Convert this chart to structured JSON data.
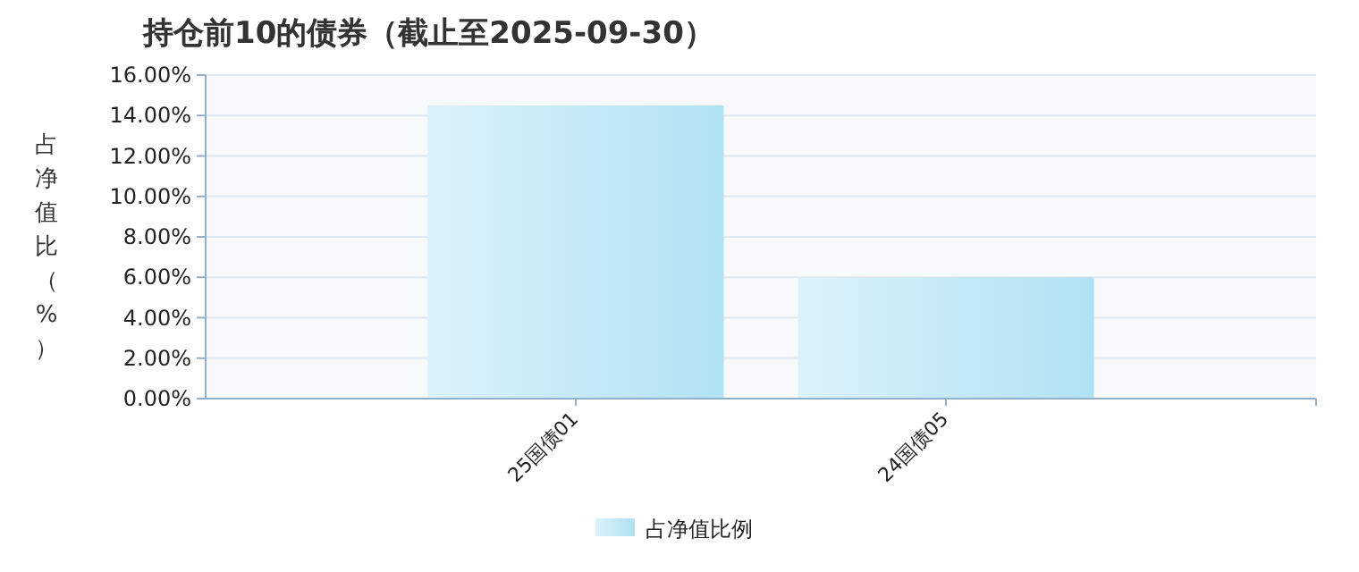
{
  "chart_data": {
    "type": "bar",
    "title": "持仓前10的债券（截止至2025-09-30）",
    "ylabel": "占净值比（%）",
    "categories": [
      "25国债01",
      "24国债05"
    ],
    "series": [
      {
        "name": "占净值比例",
        "color": "#b0e2f3",
        "values": [
          14.5,
          6.0
        ]
      }
    ],
    "ylim": [
      0,
      16
    ],
    "yticks": [
      {
        "value": 0,
        "label": "0.00%"
      },
      {
        "value": 2,
        "label": "2.00%"
      },
      {
        "value": 4,
        "label": "4.00%"
      },
      {
        "value": 6,
        "label": "6.00%"
      },
      {
        "value": 8,
        "label": "8.00%"
      },
      {
        "value": 10,
        "label": "10.00%"
      },
      {
        "value": 12,
        "label": "12.00%"
      },
      {
        "value": 14,
        "label": "14.00%"
      },
      {
        "value": 16,
        "label": "16.00%"
      }
    ],
    "grid": "y",
    "legend": "bottom"
  }
}
